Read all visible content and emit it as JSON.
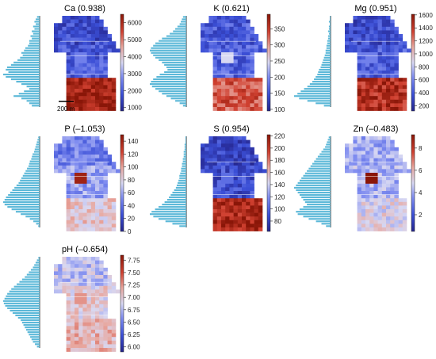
{
  "figure": {
    "scale_bar_label": "200 m",
    "colormap": [
      "#24248c",
      "#3b4fd6",
      "#7f8cf0",
      "#d8d8f2",
      "#e8a8a0",
      "#d04030",
      "#8a1608"
    ]
  },
  "chart_data": [
    {
      "type": "heatmap",
      "title": "Ca (0.938)",
      "variable": "Ca",
      "skewness": 0.938,
      "colorbar_ticks": [
        1000,
        2000,
        3000,
        4000,
        5000,
        6000
      ],
      "colorbar_range": [
        800,
        6500
      ],
      "histogram": "right-skewed, peak near 1500",
      "map_pattern": "mostly blue, intense red block in south fields"
    },
    {
      "type": "heatmap",
      "title": "K (0.621)",
      "variable": "K",
      "skewness": 0.621,
      "colorbar_ticks": [
        100,
        150,
        200,
        250,
        300,
        350
      ],
      "colorbar_range": [
        95,
        395
      ],
      "histogram": "bimodal, main peak near 150",
      "map_pattern": "blue with moderate red in south fields"
    },
    {
      "type": "heatmap",
      "title": "Mg (0.951)",
      "variable": "Mg",
      "skewness": 0.951,
      "colorbar_ticks": [
        200,
        400,
        600,
        800,
        1000,
        1200,
        1400,
        1600
      ],
      "colorbar_range": [
        120,
        1610
      ],
      "histogram": "right-skewed, peak near 250",
      "map_pattern": "mostly blue, red in south fields"
    },
    {
      "type": "heatmap",
      "title": "P (–1.053)",
      "variable": "P",
      "skewness": -1.053,
      "colorbar_ticks": [
        0,
        20,
        40,
        60,
        80,
        100,
        120,
        140
      ],
      "colorbar_range": [
        0,
        150
      ],
      "histogram": "peak near 35, long upper tail",
      "map_pattern": "light blue with pinkish south fields"
    },
    {
      "type": "heatmap",
      "title": "S (0.954)",
      "variable": "S",
      "skewness": 0.954,
      "colorbar_ticks": [
        80,
        100,
        120,
        140,
        160,
        180,
        200,
        220
      ],
      "colorbar_range": [
        63,
        222
      ],
      "histogram": "right-skewed, peak near 80",
      "map_pattern": "deep blue, strong red in south fields"
    },
    {
      "type": "heatmap",
      "title": "Zn (–0.483)",
      "variable": "Zn",
      "skewness": -0.483,
      "colorbar_ticks": [
        2,
        4,
        6,
        8
      ],
      "colorbar_range": [
        0.5,
        9.2
      ],
      "histogram": "peak near 2.5",
      "map_pattern": "pale blue with dark hot spot in middle"
    },
    {
      "type": "heatmap",
      "title": "pH (–0.654)",
      "variable": "pH",
      "skewness": -0.654,
      "colorbar_ticks": [
        6.0,
        6.25,
        6.5,
        6.75,
        7.0,
        7.25,
        7.5,
        7.75
      ],
      "colorbar_tick_labels": [
        "6.00",
        "6.25",
        "6.50",
        "6.75",
        "7.00",
        "7.25",
        "7.50",
        "7.75"
      ],
      "colorbar_range": [
        5.9,
        7.85
      ],
      "histogram": "broad, peak near 7.0",
      "map_pattern": "mixed pink and blue fields"
    }
  ]
}
